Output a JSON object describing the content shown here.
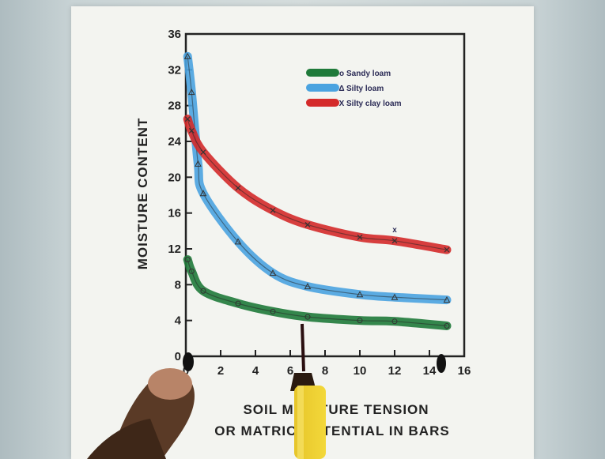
{
  "chart_data": {
    "type": "line",
    "ylabel": "MOISTURE CONTENT",
    "xlabel_line1": "SOIL MOISTURE TENSION",
    "xlabel_line2": "OR MATRIC POTENTIAL IN BARS",
    "xlim": [
      0,
      16
    ],
    "ylim": [
      0,
      36
    ],
    "x_ticks": [
      "0",
      "2",
      "4",
      "6",
      "8",
      "10",
      "12",
      "14",
      "16"
    ],
    "y_ticks": [
      "0",
      "4",
      "8",
      "12",
      "16",
      "20",
      "24",
      "28",
      "32",
      "36"
    ],
    "grid": false,
    "legend_position": "top-right",
    "series": [
      {
        "name": "Sandy loam",
        "marker": "o",
        "color": "#1f7a3a",
        "x": [
          0.1,
          0.33,
          1,
          3,
          5,
          7,
          10,
          12,
          15
        ],
        "y": [
          10.8,
          9.5,
          7.3,
          5.9,
          5.0,
          4.4,
          4.0,
          3.9,
          3.4
        ]
      },
      {
        "name": "Silty loam",
        "marker": "Δ",
        "color": "#4aa3e0",
        "x": [
          0.1,
          0.33,
          0.7,
          1,
          3,
          5,
          7,
          10,
          12,
          15
        ],
        "y": [
          33.5,
          29.5,
          21.5,
          18.2,
          12.8,
          9.3,
          7.8,
          6.9,
          6.6,
          6.3
        ]
      },
      {
        "name": "Silty clay loam",
        "marker": "X",
        "color": "#d42a2a",
        "x": [
          0.1,
          0.33,
          1,
          3,
          5,
          7,
          10,
          12,
          15
        ],
        "y": [
          26.5,
          25.2,
          22.8,
          18.8,
          16.3,
          14.7,
          13.3,
          12.9,
          11.9
        ]
      }
    ],
    "outlier_marker": {
      "symbol": "x",
      "x": 12,
      "y": 14.2
    }
  }
}
